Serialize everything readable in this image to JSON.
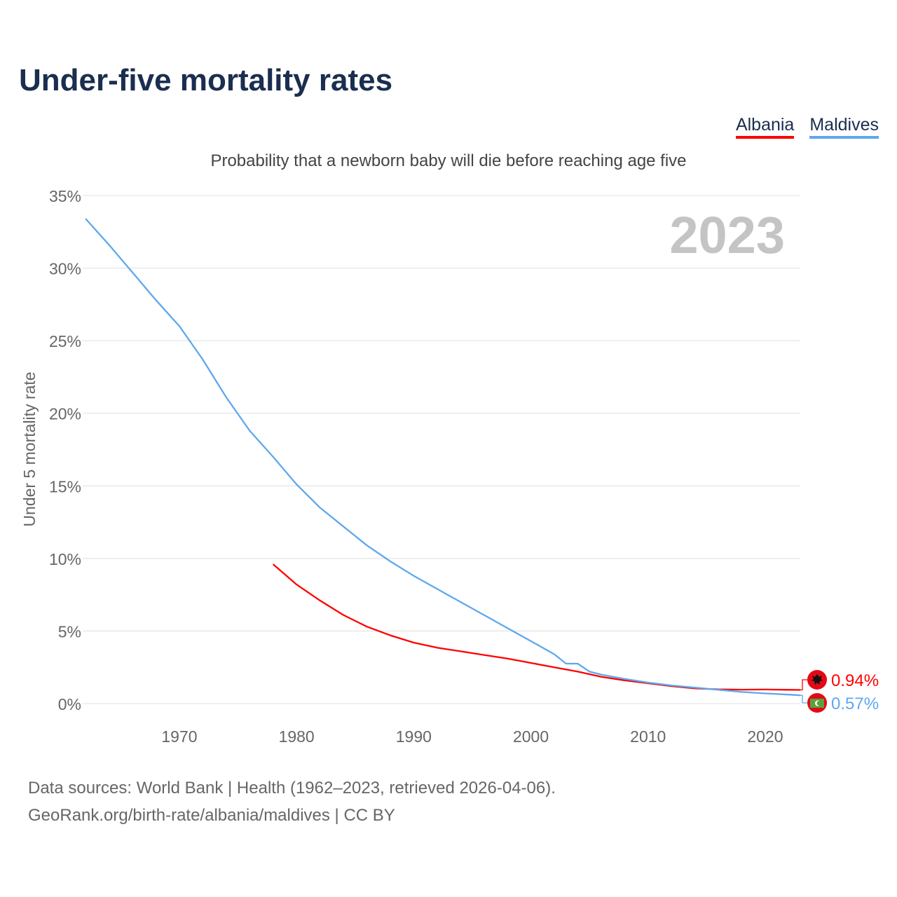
{
  "title": "Under-five mortality rates",
  "legend": [
    {
      "label": "Albania",
      "color": "#ff0000"
    },
    {
      "label": "Maldives",
      "color": "#5ea8ee"
    }
  ],
  "footer": {
    "line1": "Data sources: World Bank | Health (1962–2023, retrieved 2026-04-06).",
    "line2": "GeoRank.org/birth-rate/albania/maldives | CC BY"
  },
  "chart_data": {
    "type": "line",
    "title": "Probability that a newborn baby will die before reaching age five",
    "ylabel": "Under 5 mortality rate",
    "xlabel": "",
    "year_label": "2023",
    "xlim": [
      1962,
      2023
    ],
    "ylim": [
      0,
      35
    ],
    "x_ticks": [
      "1970",
      "1980",
      "1990",
      "2000",
      "2010",
      "2020"
    ],
    "y_ticks": [
      "0%",
      "5%",
      "10%",
      "15%",
      "20%",
      "25%",
      "30%",
      "35%"
    ],
    "grid": true,
    "series": [
      {
        "name": "Albania",
        "color": "#ff0000",
        "end_label": "0.94%",
        "flag": "albania-flag",
        "x": [
          1978,
          1980,
          1982,
          1984,
          1986,
          1988,
          1990,
          1992,
          1994,
          1996,
          1998,
          2000,
          2002,
          2004,
          2006,
          2008,
          2010,
          2012,
          2014,
          2016,
          2018,
          2020,
          2022,
          2023
        ],
        "y": [
          9.6,
          8.2,
          7.1,
          6.1,
          5.3,
          4.7,
          4.2,
          3.85,
          3.6,
          3.35,
          3.1,
          2.8,
          2.5,
          2.2,
          1.85,
          1.6,
          1.4,
          1.2,
          1.05,
          0.98,
          0.96,
          0.97,
          0.95,
          0.94
        ]
      },
      {
        "name": "Maldives",
        "color": "#5ea8ee",
        "end_label": "0.57%",
        "flag": "maldives-flag",
        "x": [
          1962,
          1963,
          1964,
          1966,
          1968,
          1970,
          1972,
          1974,
          1976,
          1978,
          1980,
          1982,
          1984,
          1986,
          1988,
          1990,
          1992,
          1994,
          1996,
          1998,
          2000,
          2002,
          2003,
          2004,
          2005,
          2006,
          2008,
          2010,
          2012,
          2014,
          2016,
          2018,
          2020,
          2022,
          2023
        ],
        "y": [
          33.4,
          32.5,
          31.6,
          29.7,
          27.8,
          26.0,
          23.7,
          21.1,
          18.8,
          17.0,
          15.1,
          13.5,
          12.2,
          10.9,
          9.8,
          8.8,
          7.9,
          7.0,
          6.1,
          5.2,
          4.3,
          3.4,
          2.75,
          2.75,
          2.2,
          2.0,
          1.7,
          1.45,
          1.25,
          1.1,
          0.95,
          0.8,
          0.7,
          0.62,
          0.57
        ]
      }
    ]
  }
}
